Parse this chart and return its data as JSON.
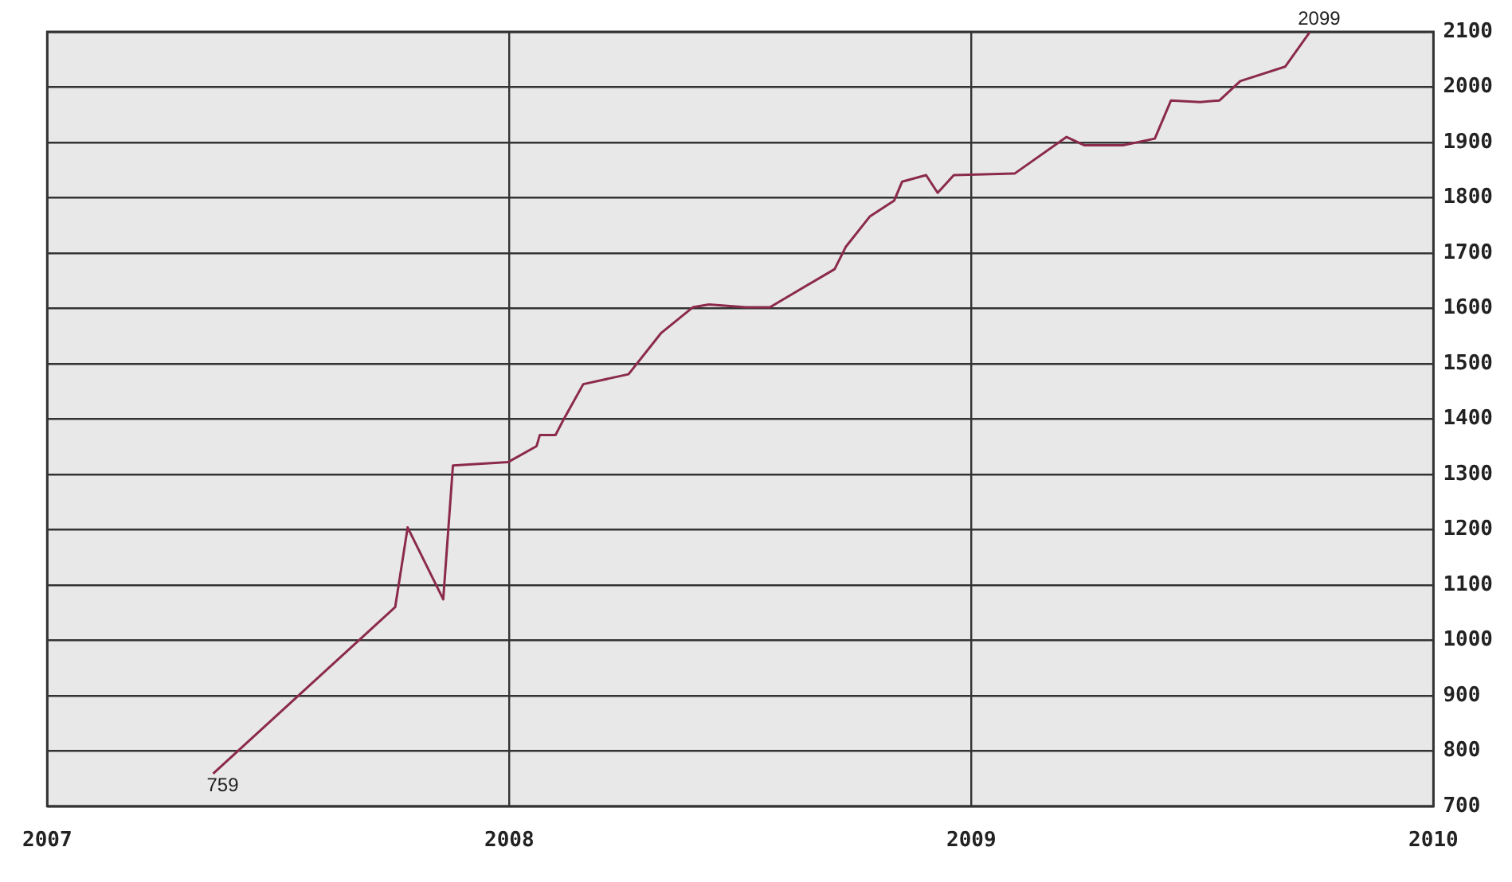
{
  "chart_data": {
    "type": "line",
    "x": [
      2007.359,
      2007.753,
      2007.78,
      2007.857,
      2007.878,
      2007.997,
      2008.059,
      2008.066,
      2008.1,
      2008.118,
      2008.16,
      2008.258,
      2008.328,
      2008.397,
      2008.432,
      2008.512,
      2008.564,
      2008.704,
      2008.728,
      2008.78,
      2008.833,
      2008.85,
      2008.902,
      2008.927,
      2008.962,
      2009.094,
      2009.206,
      2009.244,
      2009.328,
      2009.397,
      2009.432,
      2009.495,
      2009.537,
      2009.582,
      2009.679,
      2009.732
    ],
    "series": [
      {
        "color": "#8b2a4a",
        "values": [
          759,
          1060,
          1204,
          1074,
          1316,
          1322,
          1351,
          1371,
          1371,
          1400,
          1463,
          1481,
          1555,
          1602,
          1607,
          1602,
          1602,
          1671,
          1711,
          1766,
          1795,
          1829,
          1841,
          1809,
          1841,
          1844,
          1910,
          1895,
          1895,
          1907,
          1976,
          1973,
          1976,
          2011,
          2037,
          2099
        ]
      }
    ],
    "xlim": [
      2007,
      2010
    ],
    "xticks": [
      2007,
      2008,
      2009,
      2010
    ],
    "ylim": [
      700,
      2100
    ],
    "yticks": [
      700,
      800,
      900,
      1000,
      1100,
      1200,
      1300,
      1400,
      1500,
      1600,
      1700,
      1800,
      1900,
      2000,
      2100
    ],
    "grid": true,
    "marker": "none",
    "line_style": "solid",
    "legend": false,
    "annotations": [
      {
        "text": "759",
        "x": 2007.359,
        "y": 759
      },
      {
        "text": "2099",
        "x": 2009.732,
        "y": 2099
      }
    ]
  }
}
